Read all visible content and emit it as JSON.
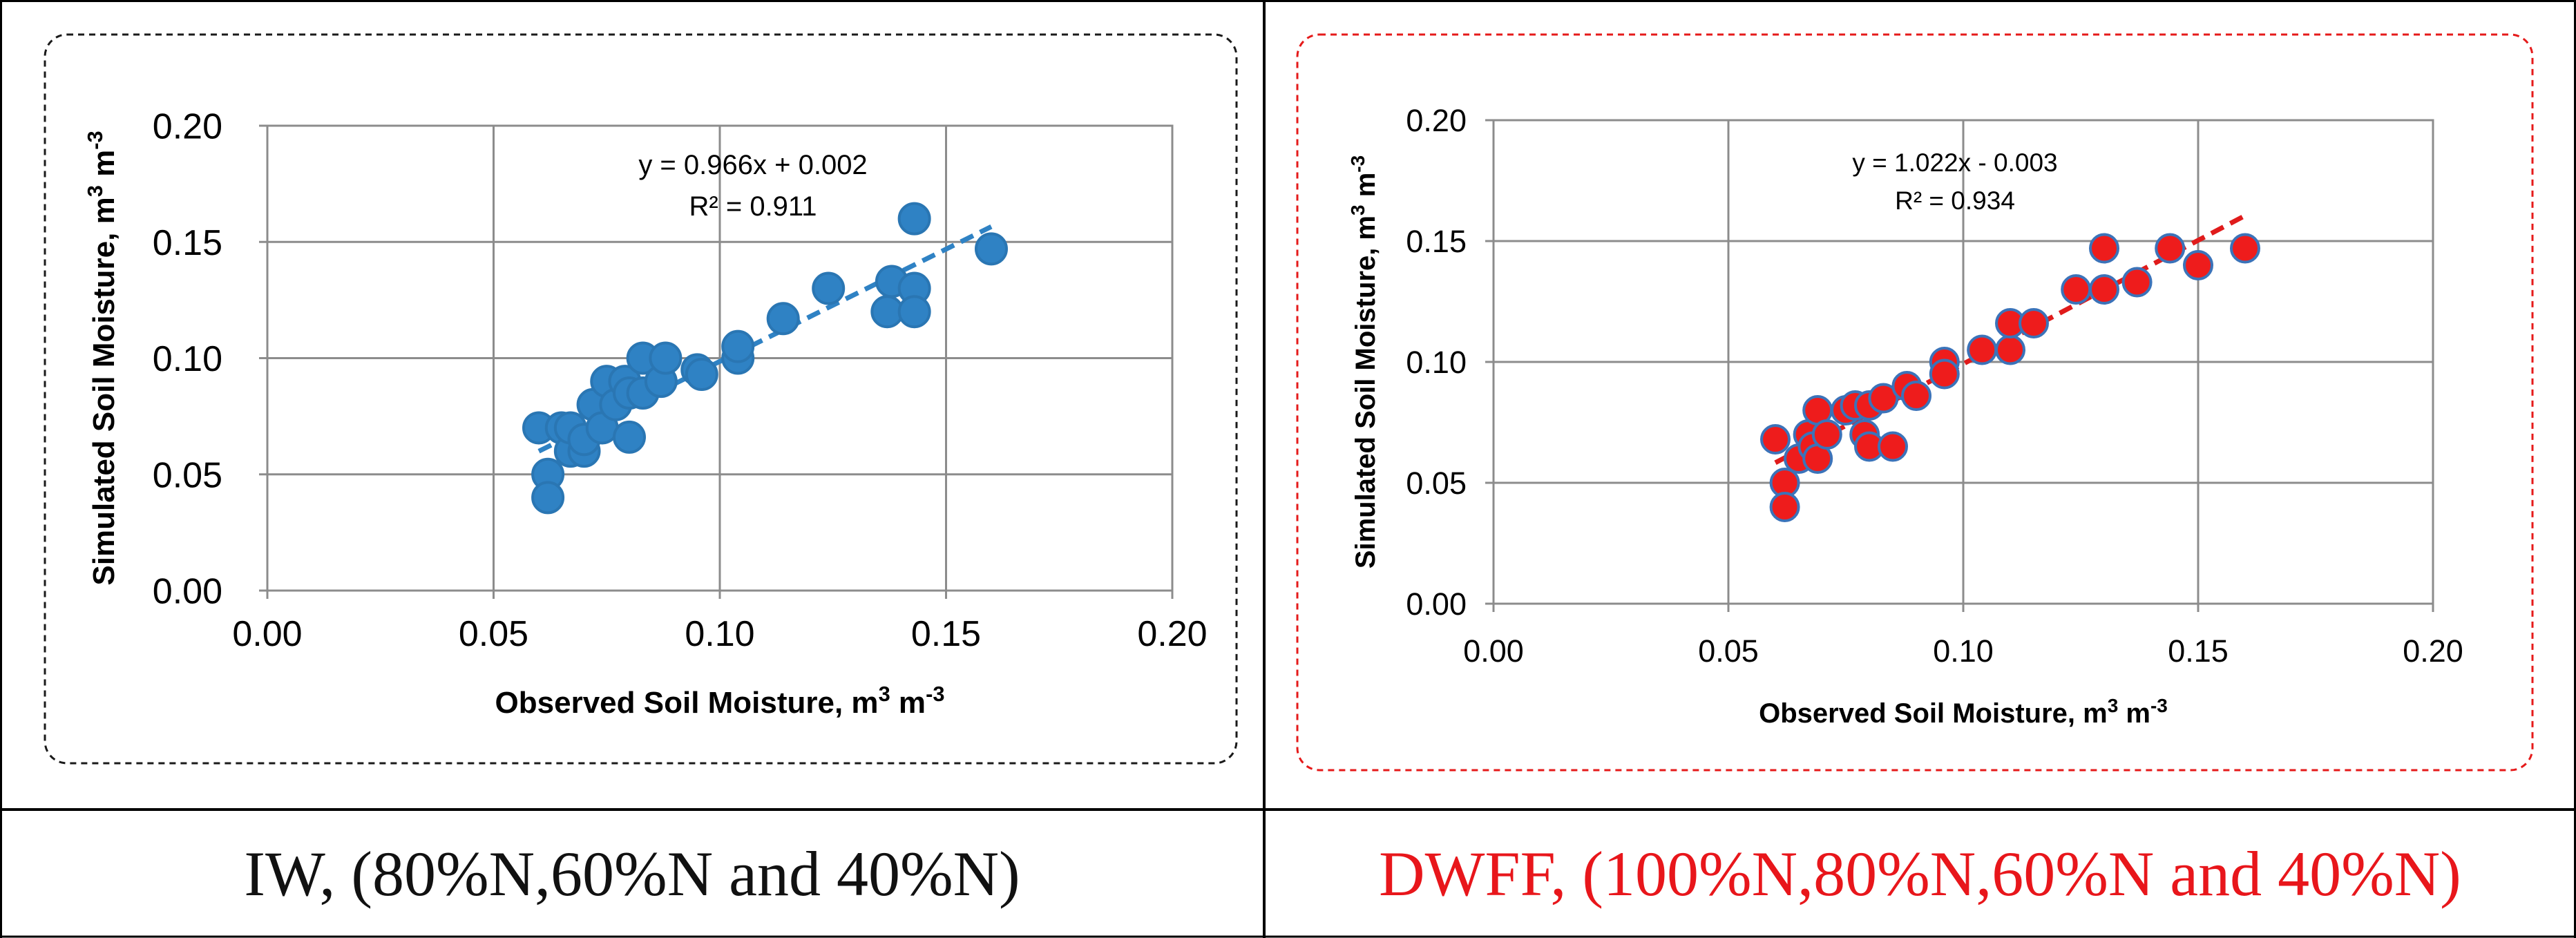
{
  "chart_data": [
    {
      "type": "scatter",
      "xlabel": "Observed Soil Moisture, m³ m⁻³",
      "ylabel": "Simulated Soil Moisture, m³ m⁻³",
      "xlim": [
        0,
        0.2
      ],
      "ylim": [
        0,
        0.2
      ],
      "x_ticks": [
        "0.00",
        "0.05",
        "0.10",
        "0.15",
        "0.20"
      ],
      "y_ticks": [
        "0.00",
        "0.05",
        "0.10",
        "0.15",
        "0.20"
      ],
      "grid": true,
      "equation": "y = 0.966x + 0.002",
      "r_squared": "R² = 0.911",
      "trendline": {
        "slope": 0.966,
        "intercept": 0.002,
        "x_range": [
          0.06,
          0.16
        ]
      },
      "marker_color": "#2f82c4",
      "marker_edge": "#2a76b3",
      "trend_color": "#2f82c4",
      "border_color": "#1a1a1a",
      "points": [
        [
          0.06,
          0.07
        ],
        [
          0.062,
          0.05
        ],
        [
          0.062,
          0.04
        ],
        [
          0.065,
          0.07
        ],
        [
          0.067,
          0.06
        ],
        [
          0.067,
          0.07
        ],
        [
          0.07,
          0.06
        ],
        [
          0.07,
          0.065
        ],
        [
          0.072,
          0.08
        ],
        [
          0.074,
          0.07
        ],
        [
          0.075,
          0.09
        ],
        [
          0.077,
          0.08
        ],
        [
          0.079,
          0.09
        ],
        [
          0.08,
          0.066
        ],
        [
          0.08,
          0.085
        ],
        [
          0.083,
          0.1
        ],
        [
          0.083,
          0.085
        ],
        [
          0.087,
          0.09
        ],
        [
          0.088,
          0.1
        ],
        [
          0.095,
          0.095
        ],
        [
          0.096,
          0.093
        ],
        [
          0.104,
          0.1
        ],
        [
          0.104,
          0.105
        ],
        [
          0.114,
          0.117
        ],
        [
          0.124,
          0.13
        ],
        [
          0.137,
          0.12
        ],
        [
          0.138,
          0.133
        ],
        [
          0.143,
          0.16
        ],
        [
          0.143,
          0.13
        ],
        [
          0.143,
          0.12
        ],
        [
          0.16,
          0.147
        ]
      ],
      "caption": "IW, (80%N,60%N and 40%N)",
      "caption_color": "#111111"
    },
    {
      "type": "scatter",
      "xlabel": "Observed Soil Moisture, m³ m⁻³",
      "ylabel": "Simulated Soil Moisture, m³ m⁻³",
      "xlim": [
        0,
        0.2
      ],
      "ylim": [
        0,
        0.2
      ],
      "x_ticks": [
        "0.00",
        "0.05",
        "0.10",
        "0.15",
        "0.20"
      ],
      "y_ticks": [
        "0.00",
        "0.05",
        "0.10",
        "0.15",
        "0.20"
      ],
      "grid": true,
      "equation": "y = 1.022x - 0.003",
      "r_squared": "R² = 0.934",
      "trendline": {
        "slope": 1.022,
        "intercept": -0.003,
        "x_range": [
          0.06,
          0.16
        ]
      },
      "marker_color": "#ee1c1c",
      "marker_edge": "#3b73b9",
      "trend_color": "#e01b1b",
      "border_color": "#e51a1a",
      "points": [
        [
          0.06,
          0.068
        ],
        [
          0.062,
          0.05
        ],
        [
          0.062,
          0.04
        ],
        [
          0.065,
          0.06
        ],
        [
          0.067,
          0.07
        ],
        [
          0.068,
          0.065
        ],
        [
          0.069,
          0.06
        ],
        [
          0.069,
          0.08
        ],
        [
          0.071,
          0.07
        ],
        [
          0.075,
          0.08
        ],
        [
          0.077,
          0.082
        ],
        [
          0.079,
          0.07
        ],
        [
          0.08,
          0.082
        ],
        [
          0.08,
          0.065
        ],
        [
          0.083,
          0.085
        ],
        [
          0.085,
          0.065
        ],
        [
          0.088,
          0.09
        ],
        [
          0.09,
          0.086
        ],
        [
          0.096,
          0.1
        ],
        [
          0.096,
          0.095
        ],
        [
          0.104,
          0.105
        ],
        [
          0.11,
          0.105
        ],
        [
          0.11,
          0.116
        ],
        [
          0.115,
          0.116
        ],
        [
          0.124,
          0.13
        ],
        [
          0.13,
          0.147
        ],
        [
          0.13,
          0.13
        ],
        [
          0.137,
          0.133
        ],
        [
          0.144,
          0.147
        ],
        [
          0.15,
          0.14
        ],
        [
          0.16,
          0.147
        ]
      ],
      "caption": "DWFF, (100%N,80%N,60%N and 40%N)",
      "caption_color": "#e8161b"
    }
  ]
}
